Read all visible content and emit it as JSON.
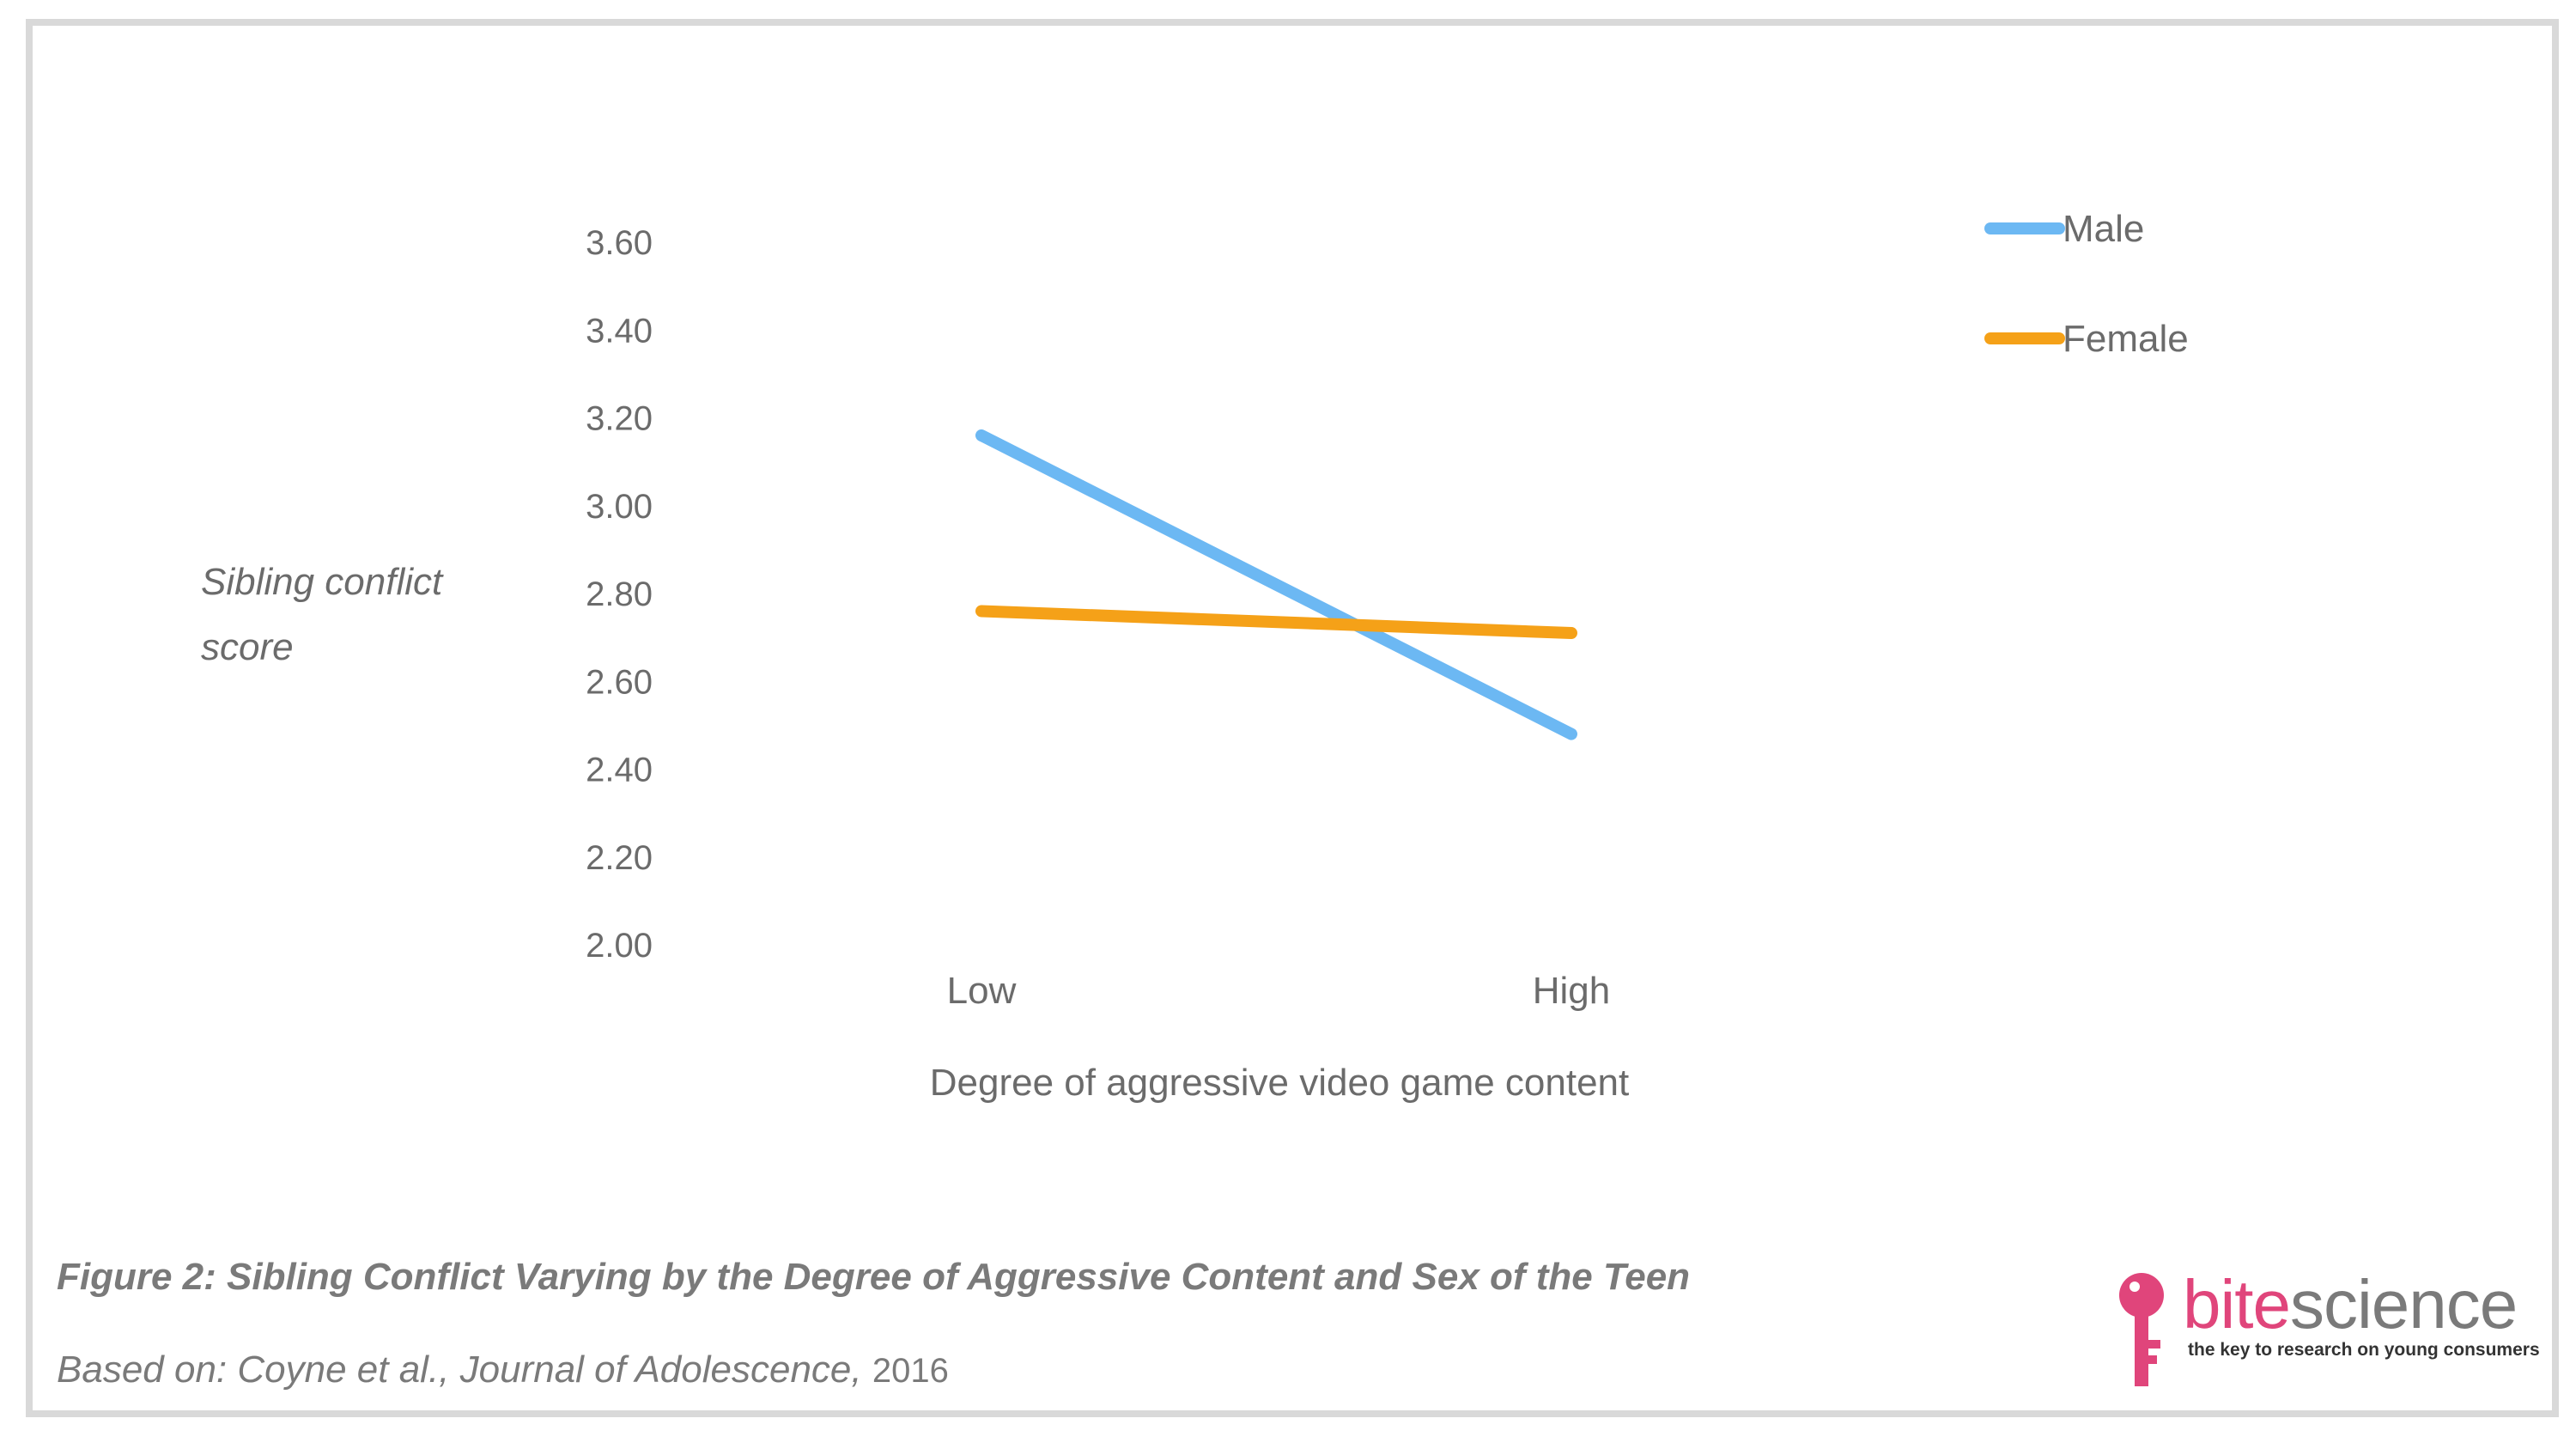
{
  "chart_data": {
    "type": "line",
    "categories": [
      "Low",
      "High"
    ],
    "series": [
      {
        "name": "Male",
        "values": [
          3.16,
          2.48
        ],
        "color": "#6cb8f3"
      },
      {
        "name": "Female",
        "values": [
          2.76,
          2.71
        ],
        "color": "#f5a118"
      }
    ],
    "ylabel": "Sibling conflict score",
    "xlabel": "Degree of aggressive video game content",
    "ylim": [
      2.0,
      3.6
    ],
    "yticks": [
      "2.00",
      "2.20",
      "2.40",
      "2.60",
      "2.80",
      "3.00",
      "3.20",
      "3.40",
      "3.60"
    ],
    "grid": false,
    "legend": "top-right"
  },
  "caption": "Figure 2: Sibling Conflict Varying by the Degree of Aggressive Content and Sex of the Teen",
  "source": {
    "prefix": "Based on: Coyne et al., Journal of Adolescence,",
    "year": "2016"
  },
  "logo": {
    "word_bite": "bite",
    "word_science": "science",
    "tagline": "the key to research on young consumers",
    "color": "#e0457b",
    "icon": "key-icon"
  }
}
